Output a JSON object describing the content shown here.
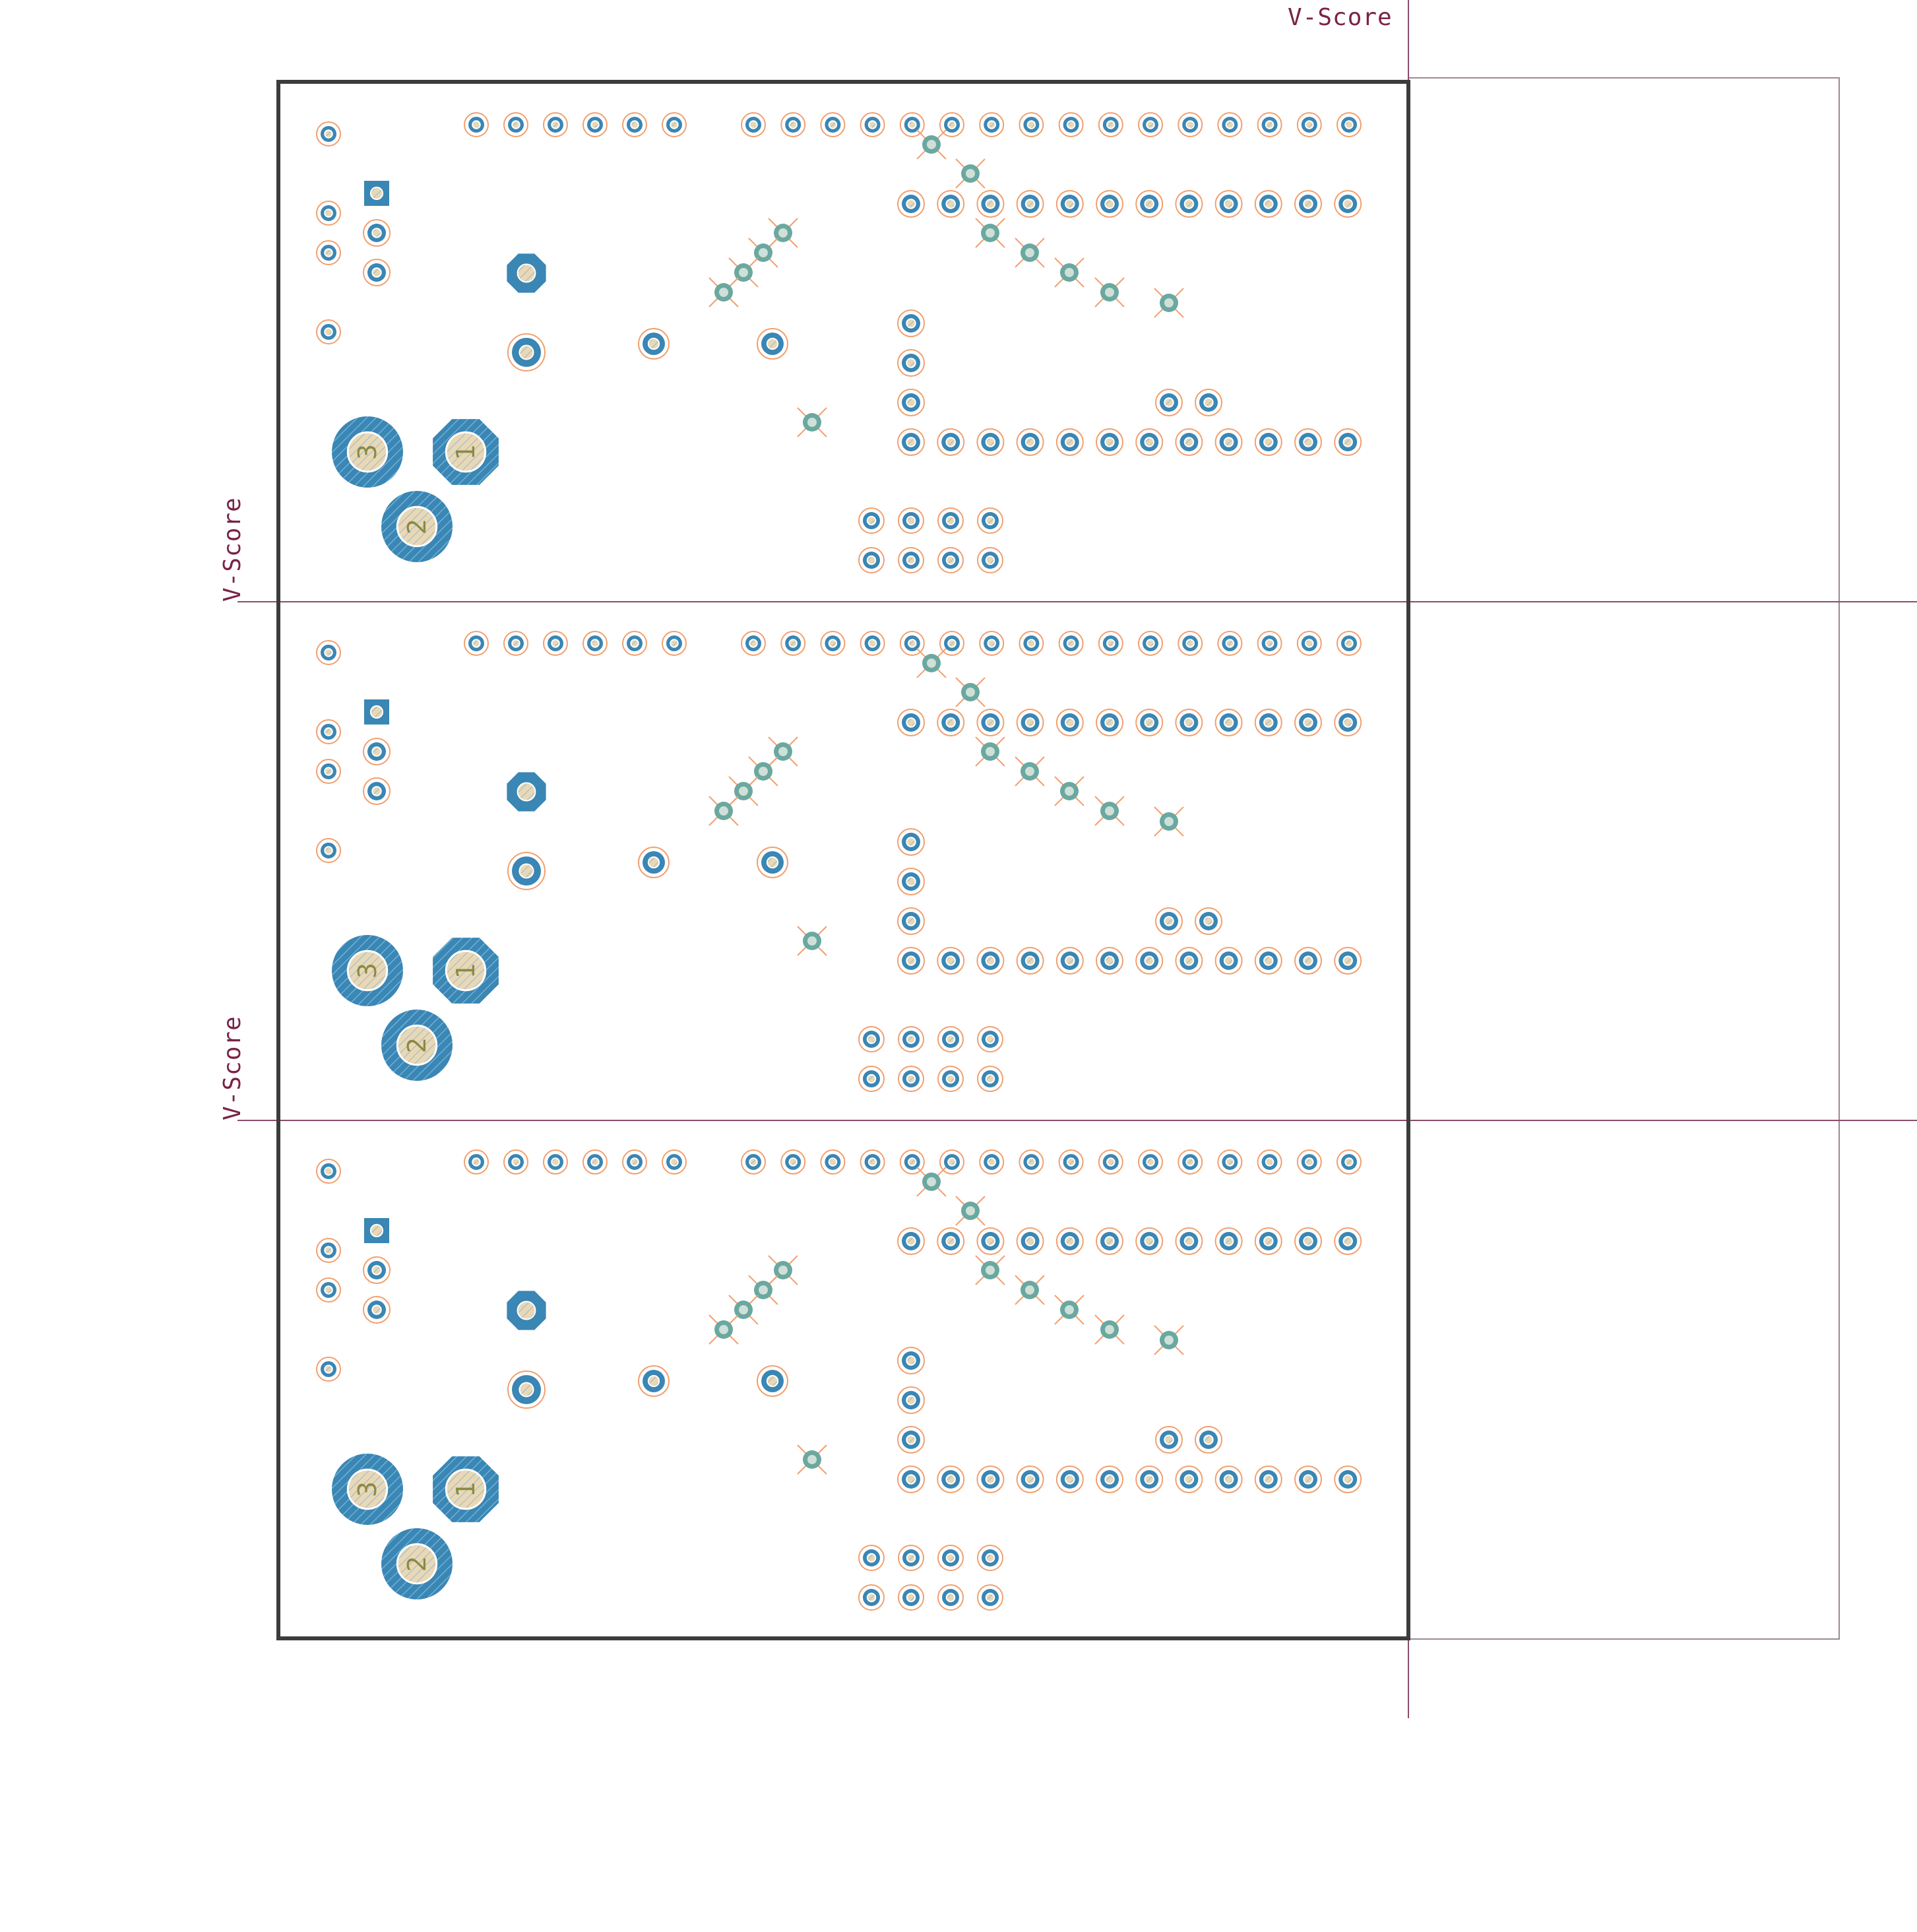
{
  "labels": {
    "vscore_top": "V-Score",
    "vscore_left_1": "V-Score",
    "vscore_left_2": "V-Score"
  },
  "connector_pin_numbers": [
    "3",
    "1",
    "2"
  ],
  "panel": {
    "copies": 3
  },
  "colors": {
    "pad": "#3a86b4",
    "pad_ring": "#f2a070",
    "via": "#6aa8a0",
    "outline": "#3c3c3c",
    "vscore_line": "#8a4d6a",
    "vscore_text": "#7a2348",
    "pin_number": "#8a8a44"
  }
}
